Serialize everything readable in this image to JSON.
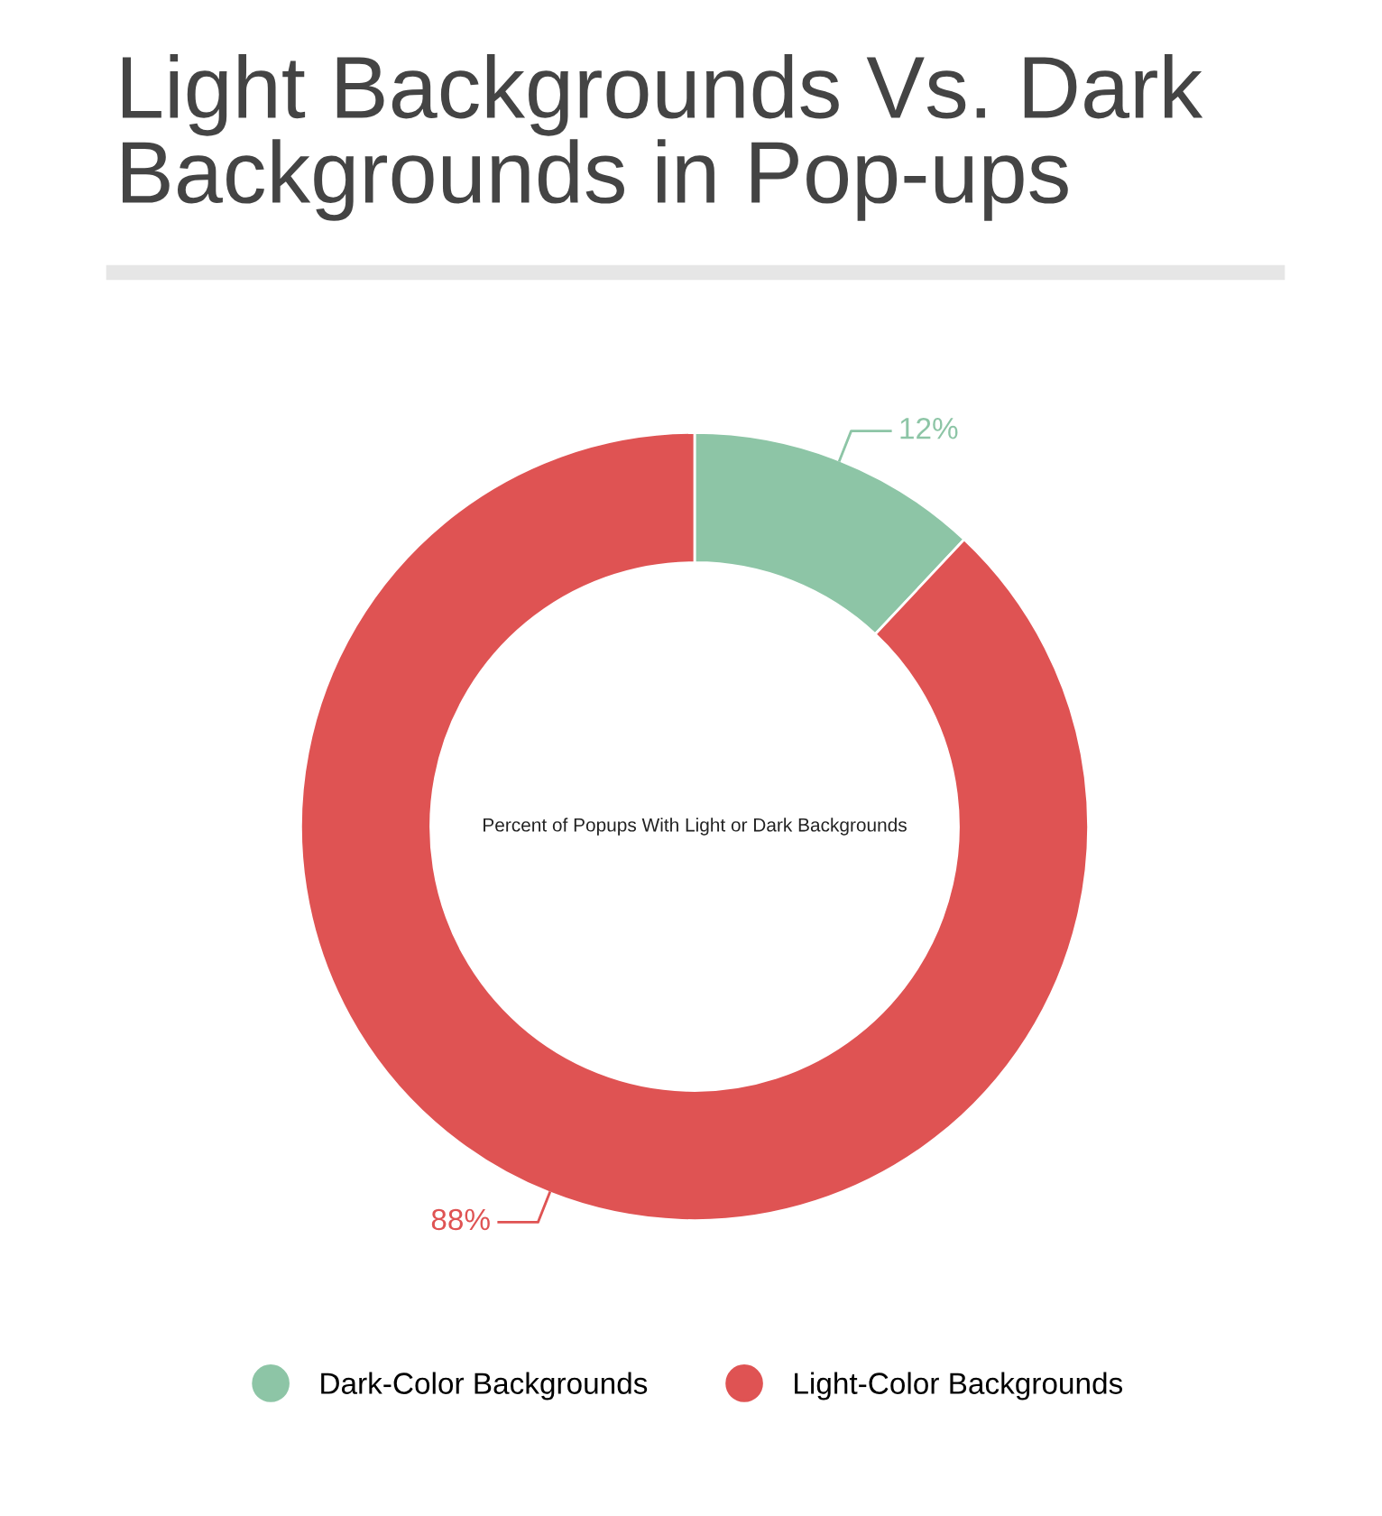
{
  "chart_data": {
    "type": "donut",
    "title": "Light Backgrounds Vs. Dark\nBackgrounds in Pop-ups",
    "annotations": [
      "Percent of Popups With Light or Dark Backgrounds"
    ],
    "categories": [
      "Dark-Color Backgrounds",
      "Light-Color Backgrounds"
    ],
    "values": [
      12,
      88
    ],
    "colors": [
      "#8dc5a6",
      "#df5353"
    ],
    "value_labels": [
      "12%",
      "88%"
    ],
    "legend": "bottom"
  }
}
